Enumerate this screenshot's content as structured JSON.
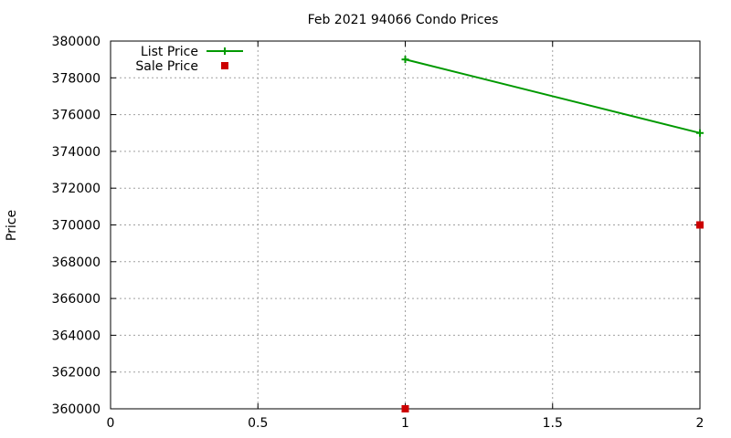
{
  "chart_data": {
    "type": "scatter",
    "title": "Feb 2021 94066 Condo Prices",
    "xlabel": "",
    "ylabel": "Price",
    "xlim": [
      0,
      2
    ],
    "ylim": [
      360000,
      380000
    ],
    "x_ticks": [
      "0",
      "0.5",
      "1",
      "1.5",
      "2"
    ],
    "y_ticks": [
      "360000",
      "362000",
      "364000",
      "366000",
      "368000",
      "370000",
      "372000",
      "374000",
      "376000",
      "378000",
      "380000"
    ],
    "grid": true,
    "legend_position": "top-left",
    "series": [
      {
        "name": "List Price",
        "style": "line-points",
        "marker": "plus",
        "color": "#009900",
        "points": [
          [
            1,
            379000
          ],
          [
            2,
            375000
          ]
        ]
      },
      {
        "name": "Sale Price",
        "style": "points",
        "marker": "square",
        "color": "#cc0000",
        "points": [
          [
            1,
            360000
          ],
          [
            2,
            370000
          ]
        ]
      }
    ]
  }
}
